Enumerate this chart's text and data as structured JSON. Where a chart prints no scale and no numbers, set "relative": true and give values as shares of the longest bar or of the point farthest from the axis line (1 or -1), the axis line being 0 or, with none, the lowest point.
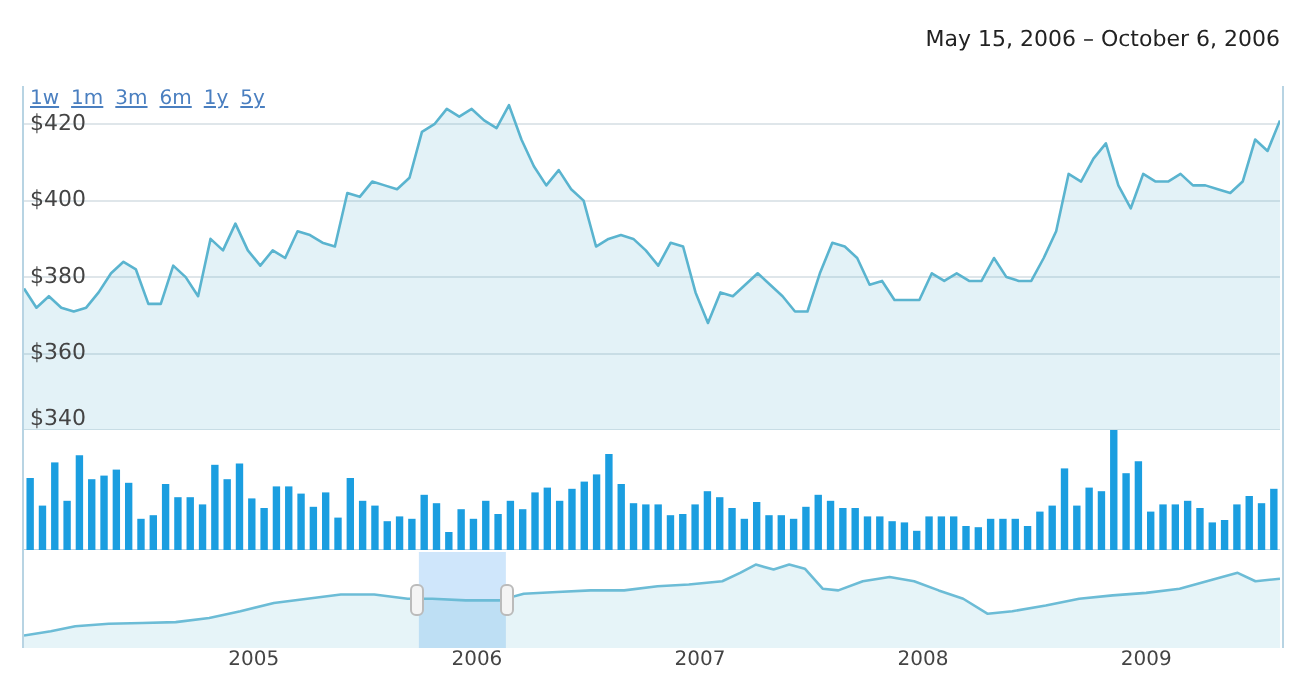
{
  "chart_data": [
    {
      "type": "area",
      "subtitle": "May 15, 2006 – October 6, 2006",
      "annotations": [
        "1w",
        "1m",
        "3m",
        "6m",
        "1y",
        "5y"
      ],
      "categories": [
        null,
        null,
        null,
        null,
        null,
        null,
        null,
        null,
        null,
        null,
        null,
        null,
        null,
        null,
        null,
        null,
        null,
        null,
        null,
        null,
        null,
        null,
        null,
        null,
        null,
        null,
        null,
        null,
        null,
        null,
        null,
        null,
        null,
        null,
        null,
        null,
        null,
        null,
        null,
        null,
        null,
        null,
        null,
        null,
        null,
        null,
        null,
        null,
        null,
        null,
        null,
        null,
        null,
        null,
        null,
        null,
        null,
        null,
        null,
        null,
        null,
        null,
        null,
        null,
        null,
        null,
        null,
        null,
        null,
        null,
        null,
        null,
        null,
        null,
        null,
        null,
        null,
        null,
        null,
        null,
        null,
        null,
        null,
        null,
        null,
        null,
        null,
        null,
        null,
        null,
        null,
        null,
        null,
        null,
        null,
        null,
        null,
        null,
        null,
        null,
        null,
        null
      ],
      "values": [
        377,
        372,
        375,
        372,
        371,
        372,
        376,
        381,
        384,
        382,
        373,
        373,
        383,
        380,
        375,
        390,
        387,
        394,
        387,
        383,
        387,
        385,
        392,
        391,
        389,
        388,
        402,
        401,
        405,
        404,
        403,
        406,
        418,
        420,
        424,
        422,
        424,
        421,
        419,
        425,
        416,
        409,
        404,
        408,
        403,
        400,
        388,
        390,
        391,
        390,
        387,
        383,
        389,
        388,
        376,
        368,
        376,
        375,
        378,
        381,
        378,
        375,
        371,
        371,
        381,
        389,
        388,
        385,
        378,
        379,
        374,
        374,
        374,
        381,
        379,
        381,
        379,
        379,
        385,
        380,
        379,
        379,
        385,
        392,
        407,
        405,
        411,
        415,
        404,
        398,
        407,
        405,
        405,
        407,
        404,
        404,
        403,
        402,
        405,
        416,
        413,
        421
      ],
      "color": "#5ab4cf",
      "ylim": [
        340,
        430
      ],
      "yticks": [
        {
          "value": 340,
          "label": "$340"
        },
        {
          "value": 360,
          "label": "$360"
        },
        {
          "value": 380,
          "label": "$380"
        },
        {
          "value": 400,
          "label": "$400"
        },
        {
          "value": 420,
          "label": "$420"
        }
      ],
      "grid": "y",
      "tick_labels": "y"
    },
    {
      "type": "bar",
      "relative": true,
      "color": "#1b9ee0",
      "categories": [
        null,
        null,
        null,
        null,
        null,
        null,
        null,
        null,
        null,
        null,
        null,
        null,
        null,
        null,
        null,
        null,
        null,
        null,
        null,
        null,
        null,
        null,
        null,
        null,
        null,
        null,
        null,
        null,
        null,
        null,
        null,
        null,
        null,
        null,
        null,
        null,
        null,
        null,
        null,
        null,
        null,
        null,
        null,
        null,
        null,
        null,
        null,
        null,
        null,
        null,
        null,
        null,
        null,
        null,
        null,
        null,
        null,
        null,
        null,
        null,
        null,
        null,
        null,
        null,
        null,
        null,
        null,
        null,
        null,
        null,
        null,
        null,
        null,
        null,
        null,
        null,
        null,
        null,
        null,
        null,
        null,
        null,
        null,
        null,
        null,
        null,
        null,
        null,
        null,
        null,
        null,
        null,
        null,
        null,
        null,
        null,
        null,
        null,
        null,
        null,
        null,
        null
      ],
      "values": [
        0.6,
        0.37,
        0.73,
        0.41,
        0.79,
        0.59,
        0.62,
        0.67,
        0.56,
        0.26,
        0.29,
        0.55,
        0.44,
        0.44,
        0.38,
        0.71,
        0.59,
        0.72,
        0.43,
        0.35,
        0.53,
        0.53,
        0.47,
        0.36,
        0.48,
        0.27,
        0.6,
        0.41,
        0.37,
        0.24,
        0.28,
        0.26,
        0.46,
        0.39,
        0.15,
        0.34,
        0.26,
        0.41,
        0.3,
        0.41,
        0.34,
        0.48,
        0.52,
        0.41,
        0.51,
        0.57,
        0.63,
        0.8,
        0.55,
        0.39,
        0.38,
        0.38,
        0.29,
        0.3,
        0.38,
        0.49,
        0.44,
        0.35,
        0.26,
        0.4,
        0.29,
        0.29,
        0.26,
        0.36,
        0.46,
        0.41,
        0.35,
        0.35,
        0.28,
        0.28,
        0.24,
        0.23,
        0.16,
        0.28,
        0.28,
        0.28,
        0.2,
        0.19,
        0.26,
        0.26,
        0.26,
        0.2,
        0.32,
        0.37,
        0.68,
        0.37,
        0.52,
        0.49,
        1,
        0.64,
        0.74,
        0.32,
        0.38,
        0.38,
        0.41,
        0.35,
        0.23,
        0.25,
        0.38,
        0.45,
        0.39,
        0.51
      ]
    },
    {
      "type": "area",
      "relative": true,
      "color": "#6cbcd6",
      "x": [
        2003.97,
        2004.09,
        2004.2,
        2004.35,
        2004.5,
        2004.65,
        2004.8,
        2004.94,
        2005.09,
        2005.24,
        2005.39,
        2005.54,
        2005.69,
        2005.8,
        2005.95,
        2006.1,
        2006.21,
        2006.36,
        2006.51,
        2006.66,
        2006.81,
        2006.95,
        2007.1,
        2007.18,
        2007.25,
        2007.33,
        2007.4,
        2007.47,
        2007.55,
        2007.62,
        2007.73,
        2007.85,
        2007.96,
        2008.07,
        2008.18,
        2008.29,
        2008.4,
        2008.55,
        2008.7,
        2008.85,
        2009,
        2009.15,
        2009.3,
        2009.41,
        2009.49,
        2009.6
      ],
      "values": [
        0.15,
        0.2,
        0.26,
        0.29,
        0.3,
        0.31,
        0.36,
        0.44,
        0.54,
        0.59,
        0.64,
        0.64,
        0.59,
        0.59,
        0.57,
        0.57,
        0.65,
        0.67,
        0.69,
        0.69,
        0.74,
        0.76,
        0.8,
        0.9,
        1,
        0.94,
        1,
        0.95,
        0.71,
        0.69,
        0.8,
        0.85,
        0.8,
        0.69,
        0.59,
        0.41,
        0.44,
        0.51,
        0.59,
        0.63,
        0.66,
        0.71,
        0.82,
        0.9,
        0.8,
        0.83
      ],
      "xlim": [
        2003.97,
        2009.6
      ],
      "xticks": [
        2005,
        2006,
        2007,
        2008,
        2009
      ],
      "bands": [
        {
          "axis": "x",
          "from": 2005.74,
          "to": 2006.13,
          "color": "#cfe6fb"
        }
      ]
    }
  ]
}
